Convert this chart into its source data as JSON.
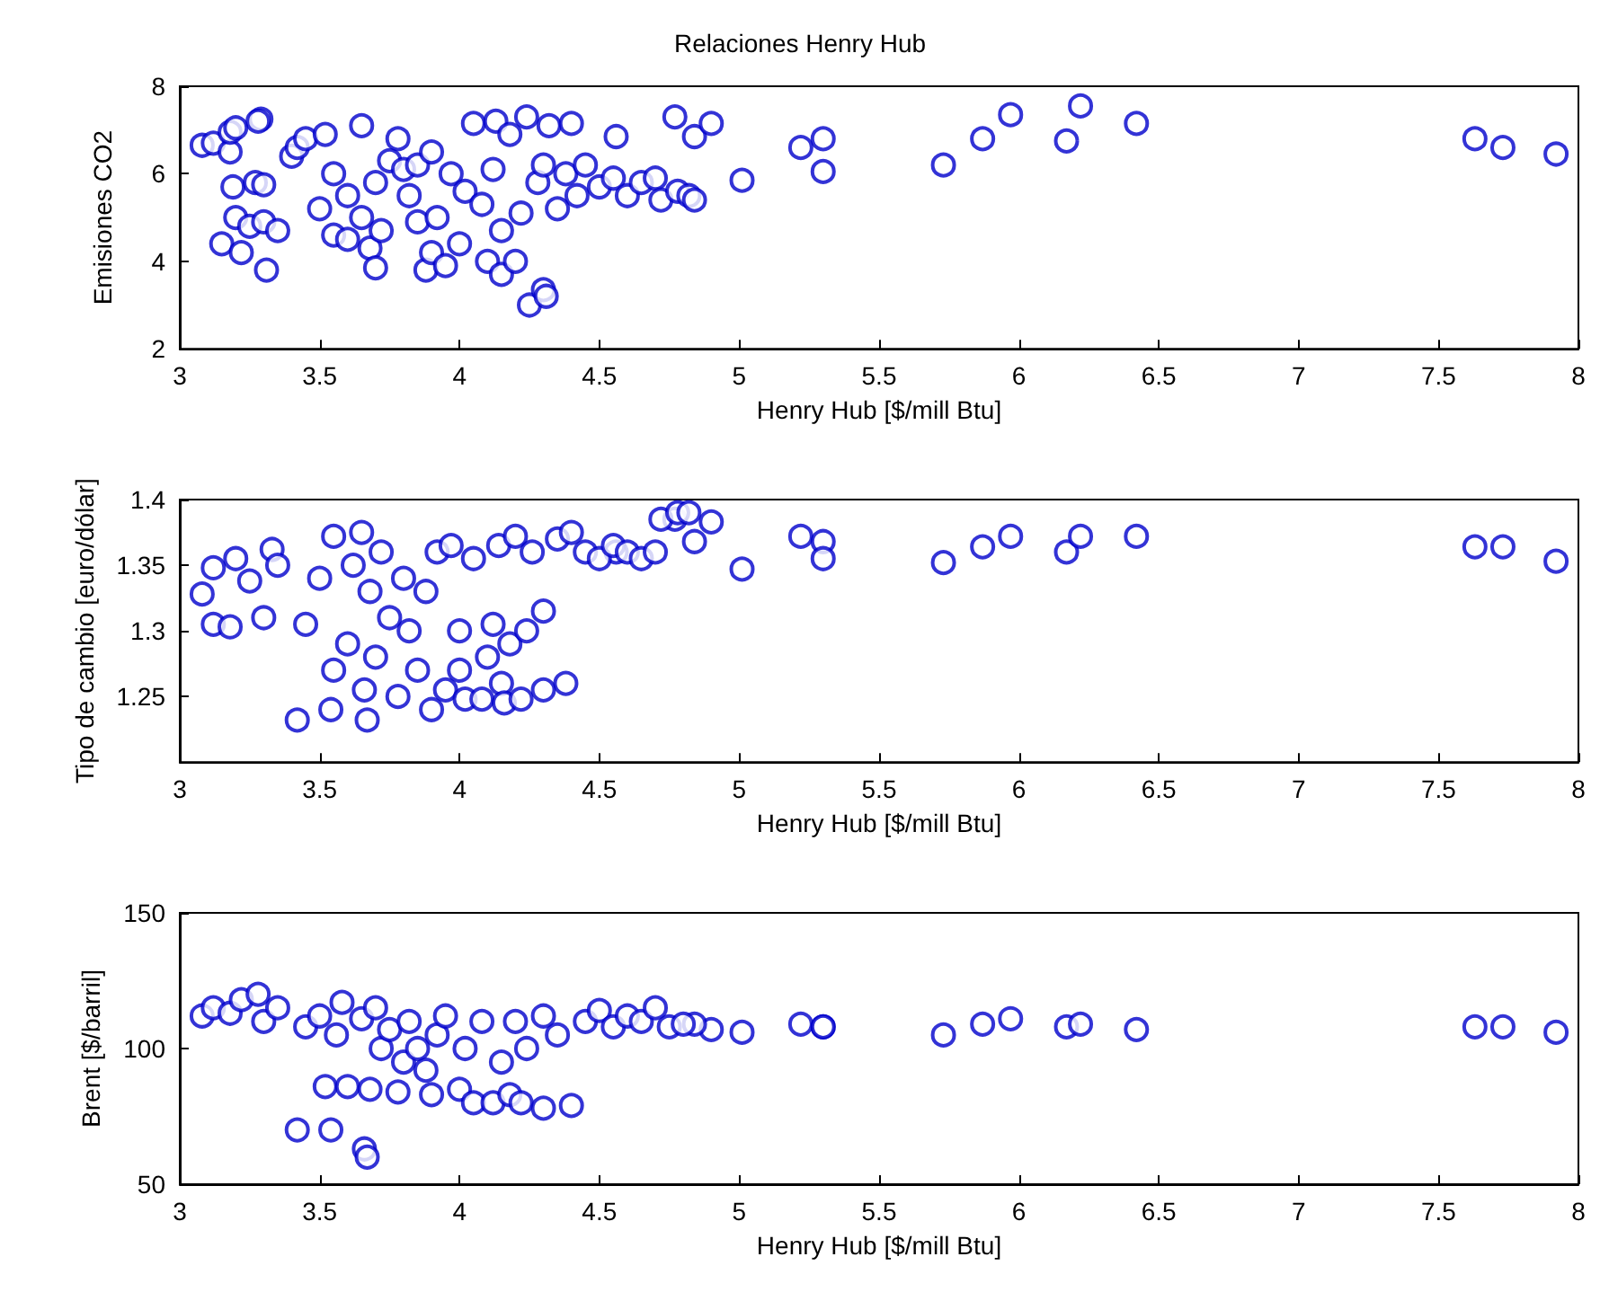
{
  "chart_data": [
    {
      "type": "scatter",
      "title": "Relaciones Henry Hub",
      "xlabel": "Henry Hub [$/mill Btu]",
      "ylabel": "Emisiones CO2",
      "xlim": [
        3,
        8
      ],
      "xticks": [
        3,
        3.5,
        4,
        4.5,
        5,
        5.5,
        6,
        6.5,
        7,
        7.5,
        8
      ],
      "ylim": [
        2,
        8
      ],
      "yticks": [
        2,
        4,
        6,
        8
      ],
      "marker": "circle",
      "color": "#0000cc",
      "x": [
        5.01,
        5.22,
        5.3,
        5.3,
        5.73,
        5.87,
        5.97,
        6.17,
        6.22,
        6.42,
        7.63,
        7.73,
        7.92,
        4.77,
        4.84,
        4.9,
        4.56,
        3.08,
        3.12,
        3.18,
        3.18,
        3.2,
        3.29,
        3.28,
        3.15,
        3.22,
        3.31,
        3.19,
        3.27,
        3.3,
        3.2,
        3.25,
        3.3,
        3.35,
        3.4,
        3.42,
        3.45,
        3.5,
        3.52,
        3.55,
        3.55,
        3.6,
        3.6,
        3.65,
        3.65,
        3.68,
        3.7,
        3.7,
        3.72,
        3.75,
        3.78,
        3.8,
        3.82,
        3.85,
        3.85,
        3.88,
        3.9,
        3.9,
        3.92,
        3.95,
        3.97,
        4,
        4.02,
        4.05,
        4.08,
        4.1,
        4.12,
        4.13,
        4.15,
        4.15,
        4.18,
        4.2,
        4.22,
        4.24,
        4.25,
        4.28,
        4.3,
        4.3,
        4.31,
        4.32,
        4.35,
        4.38,
        4.4,
        4.42,
        4.45,
        4.5,
        4.55,
        4.6,
        4.65,
        4.7,
        4.72,
        4.78,
        4.82,
        4.84
      ],
      "values": [
        5.85,
        6.6,
        6.8,
        6.05,
        6.2,
        6.8,
        7.35,
        6.75,
        7.55,
        7.15,
        6.8,
        6.6,
        6.45,
        7.3,
        6.85,
        7.15,
        6.85,
        6.65,
        6.7,
        6.5,
        6.95,
        7.05,
        7.25,
        7.2,
        4.4,
        4.2,
        3.8,
        5.7,
        5.8,
        5.75,
        5,
        4.8,
        4.9,
        4.7,
        6.4,
        6.6,
        6.8,
        5.2,
        6.9,
        6,
        4.6,
        5.5,
        4.5,
        7.1,
        5,
        4.3,
        3.85,
        5.8,
        4.7,
        6.3,
        6.8,
        6.1,
        5.5,
        6.2,
        4.9,
        3.8,
        6.5,
        4.2,
        5,
        3.9,
        6,
        4.4,
        5.6,
        7.15,
        5.3,
        4,
        6.1,
        7.2,
        3.7,
        4.7,
        6.9,
        4,
        5.1,
        7.3,
        3,
        5.8,
        6.2,
        3.35,
        3.2,
        7.1,
        5.2,
        6,
        7.15,
        5.5,
        6.2,
        5.7,
        5.9,
        5.5,
        5.8,
        5.9,
        5.4,
        5.6,
        5.5,
        5.4
      ]
    },
    {
      "type": "scatter",
      "xlabel": "Henry Hub [$/mill Btu]",
      "ylabel": "Tipo de cambio [euro/dólar]",
      "xlim": [
        3,
        8
      ],
      "xticks": [
        3,
        3.5,
        4,
        4.5,
        5,
        5.5,
        6,
        6.5,
        7,
        7.5,
        8
      ],
      "ylim": [
        1.2,
        1.4
      ],
      "yticks": [
        1.25,
        1.3,
        1.35,
        1.4
      ],
      "marker": "circle",
      "color": "#0000cc",
      "x": [
        5.01,
        5.22,
        5.3,
        5.3,
        5.73,
        5.87,
        5.97,
        6.17,
        6.22,
        6.42,
        7.63,
        7.73,
        7.92,
        4.77,
        4.84,
        4.9,
        4.56,
        3.08,
        3.12,
        3.12,
        3.18,
        3.2,
        3.25,
        3.3,
        3.33,
        3.35,
        3.42,
        3.45,
        3.5,
        3.54,
        3.55,
        3.55,
        3.6,
        3.62,
        3.65,
        3.66,
        3.67,
        3.68,
        3.7,
        3.72,
        3.75,
        3.78,
        3.8,
        3.82,
        3.85,
        3.88,
        3.9,
        3.92,
        3.95,
        3.97,
        4,
        4,
        4.02,
        4.05,
        4.08,
        4.1,
        4.12,
        4.14,
        4.15,
        4.16,
        4.18,
        4.2,
        4.22,
        4.24,
        4.26,
        4.3,
        4.3,
        4.35,
        4.38,
        4.4,
        4.45,
        4.5,
        4.55,
        4.6,
        4.65,
        4.7,
        4.72,
        4.78,
        4.82
      ],
      "values": [
        1.347,
        1.372,
        1.368,
        1.355,
        1.352,
        1.364,
        1.372,
        1.36,
        1.372,
        1.372,
        1.364,
        1.364,
        1.353,
        1.385,
        1.368,
        1.383,
        1.36,
        1.328,
        1.348,
        1.305,
        1.303,
        1.355,
        1.338,
        1.31,
        1.362,
        1.35,
        1.232,
        1.305,
        1.34,
        1.24,
        1.27,
        1.372,
        1.29,
        1.35,
        1.375,
        1.255,
        1.232,
        1.33,
        1.28,
        1.36,
        1.31,
        1.25,
        1.34,
        1.3,
        1.27,
        1.33,
        1.24,
        1.36,
        1.255,
        1.365,
        1.3,
        1.27,
        1.248,
        1.355,
        1.248,
        1.28,
        1.305,
        1.365,
        1.26,
        1.245,
        1.29,
        1.372,
        1.248,
        1.3,
        1.36,
        1.255,
        1.315,
        1.37,
        1.26,
        1.375,
        1.36,
        1.355,
        1.365,
        1.36,
        1.355,
        1.36,
        1.385,
        1.39,
        1.39
      ]
    },
    {
      "type": "scatter",
      "xlabel": "Henry Hub [$/mill Btu]",
      "ylabel": "Brent [$/barril]",
      "xlim": [
        3,
        8
      ],
      "xticks": [
        3,
        3.5,
        4,
        4.5,
        5,
        5.5,
        6,
        6.5,
        7,
        7.5,
        8
      ],
      "ylim": [
        50,
        150
      ],
      "yticks": [
        50,
        100,
        150
      ],
      "marker": "circle",
      "color": "#0000cc",
      "x": [
        5.01,
        5.22,
        5.3,
        5.3,
        5.73,
        5.87,
        5.97,
        6.17,
        6.22,
        6.42,
        7.63,
        7.73,
        7.92,
        4.9,
        4.84,
        3.08,
        3.12,
        3.18,
        3.22,
        3.28,
        3.3,
        3.35,
        3.42,
        3.45,
        3.5,
        3.52,
        3.54,
        3.56,
        3.58,
        3.6,
        3.65,
        3.66,
        3.67,
        3.68,
        3.7,
        3.72,
        3.75,
        3.78,
        3.8,
        3.82,
        3.85,
        3.88,
        3.9,
        3.92,
        3.95,
        4,
        4.02,
        4.05,
        4.08,
        4.12,
        4.15,
        4.18,
        4.2,
        4.22,
        4.24,
        4.3,
        4.3,
        4.35,
        4.4,
        4.45,
        4.5,
        4.55,
        4.6,
        4.65,
        4.7,
        4.75,
        4.8
      ],
      "values": [
        106,
        109,
        108,
        108,
        105,
        109,
        111,
        108,
        109,
        107,
        108,
        108,
        106,
        107,
        109,
        112,
        115,
        113,
        118,
        120,
        110,
        115,
        70,
        108,
        112,
        86,
        70,
        105,
        117,
        86,
        111,
        63,
        60,
        85,
        115,
        100,
        107,
        84,
        95,
        110,
        100,
        92,
        83,
        105,
        112,
        85,
        100,
        80,
        110,
        80,
        95,
        83,
        110,
        80,
        100,
        78,
        112,
        105,
        79,
        110,
        114,
        108,
        112,
        110,
        115,
        108,
        109
      ]
    }
  ]
}
